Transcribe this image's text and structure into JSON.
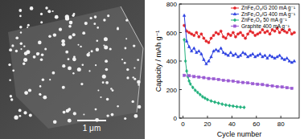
{
  "image": {
    "scale_bar_label": "1 μm"
  },
  "chart_data": {
    "type": "line",
    "xlabel": "Cycle number",
    "ylabel": "Capacity / mAh g⁻¹",
    "xlim": [
      -3,
      95
    ],
    "xticks": [
      0,
      20,
      40,
      60,
      80
    ],
    "ylim": [
      0,
      800
    ],
    "yticks": [
      0,
      200,
      400,
      600,
      800
    ],
    "legend": "upper right",
    "series": [
      {
        "name": "ZnFe₂O₄/G 200 mA g⁻¹",
        "color": "#e3262b",
        "marker": "circle",
        "x": [
          1,
          3,
          5,
          7,
          9,
          11,
          13,
          15,
          17,
          19,
          21,
          23,
          25,
          27,
          29,
          31,
          33,
          35,
          37,
          39,
          41,
          43,
          45,
          47,
          49,
          51,
          53,
          55,
          57,
          59,
          61,
          63,
          65,
          67,
          69,
          71,
          73,
          75,
          77,
          79,
          81,
          83,
          85,
          87,
          89,
          91
        ],
        "values": [
          650,
          610,
          600,
          590,
          580,
          600,
          570,
          590,
          560,
          540,
          530,
          560,
          580,
          600,
          590,
          610,
          570,
          560,
          590,
          580,
          600,
          570,
          590,
          600,
          580,
          560,
          590,
          610,
          600,
          580,
          590,
          600,
          620,
          600,
          610,
          590,
          620,
          610,
          630,
          600,
          620,
          610,
          600,
          620,
          590,
          600
        ]
      },
      {
        "name": "ZnFe₂O₄/G 400 mA g⁻¹",
        "color": "#2a3fe0",
        "marker": "triangle",
        "x": [
          1,
          3,
          5,
          7,
          9,
          11,
          13,
          15,
          17,
          19,
          21,
          23,
          25,
          27,
          29,
          31,
          33,
          35,
          37,
          39,
          41,
          43,
          45,
          47,
          49,
          51,
          53,
          55,
          57,
          59,
          61,
          63,
          65,
          67,
          69,
          71,
          73,
          75,
          77,
          79,
          81,
          83,
          85,
          87,
          89,
          91
        ],
        "values": [
          720,
          540,
          500,
          470,
          490,
          460,
          470,
          450,
          410,
          380,
          400,
          430,
          470,
          480,
          470,
          490,
          460,
          450,
          440,
          460,
          440,
          450,
          430,
          440,
          460,
          450,
          430,
          440,
          450,
          430,
          440,
          450,
          430,
          440,
          420,
          440,
          430,
          420,
          430,
          440,
          420,
          410,
          420,
          400,
          390,
          400
        ]
      },
      {
        "name": "ZnFe₂O₄ 50 mA g⁻¹",
        "color": "#21b07c",
        "marker": "diamond",
        "x": [
          1,
          2,
          3,
          4,
          5,
          6,
          8,
          10,
          12,
          14,
          16,
          18,
          20,
          23,
          26,
          29,
          32,
          35,
          38,
          41,
          44,
          47,
          50
        ],
        "values": [
          550,
          400,
          330,
          290,
          260,
          240,
          215,
          195,
          180,
          165,
          150,
          140,
          130,
          120,
          112,
          105,
          98,
          92,
          88,
          84,
          80,
          77,
          75
        ]
      },
      {
        "name": "Graphite 400 mA g⁻¹",
        "color": "#9a5bd3",
        "marker": "square",
        "x": [
          1,
          5,
          9,
          13,
          17,
          21,
          25,
          29,
          33,
          37,
          41,
          45,
          49,
          53,
          57,
          61,
          65,
          69,
          73,
          77,
          81,
          85,
          89
        ],
        "values": [
          300,
          297,
          291,
          288,
          284,
          278,
          275,
          271,
          265,
          262,
          259,
          253,
          250,
          247,
          241,
          238,
          235,
          229,
          226,
          221,
          218,
          213,
          209
        ]
      }
    ]
  }
}
